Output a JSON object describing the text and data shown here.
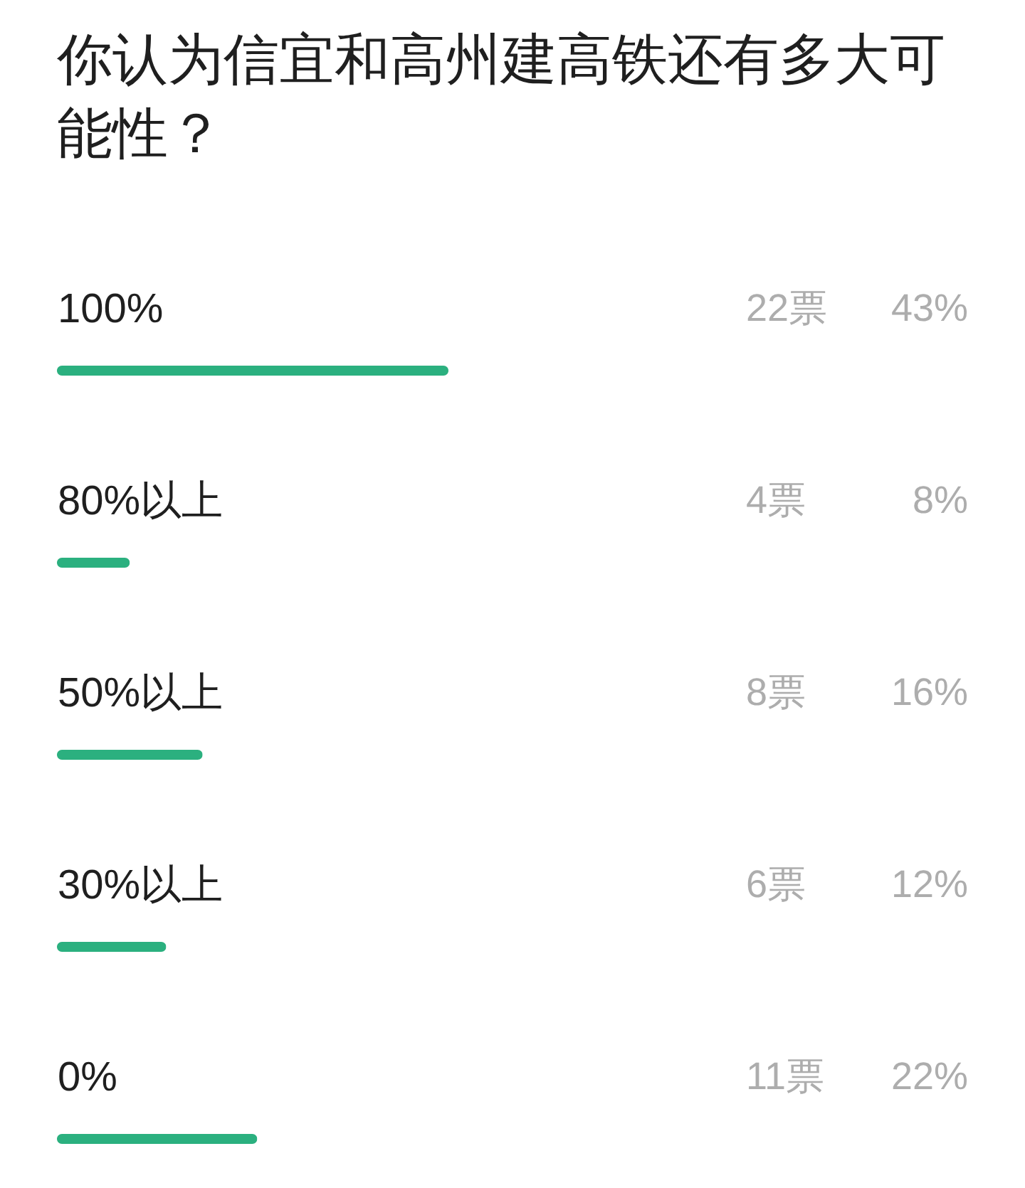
{
  "chart_data": {
    "type": "bar",
    "orientation": "horizontal",
    "title": "你认为信宜和高州建高铁还有多大可能性？",
    "categories": [
      "100%",
      "80%以上",
      "50%以上",
      "30%以上",
      "0%"
    ],
    "values": [
      43,
      8,
      16,
      12,
      22
    ],
    "value_labels": [
      "43%",
      "8%",
      "16%",
      "12%",
      "22%"
    ],
    "annotations": [
      "22票",
      "4票",
      "8票",
      "6票",
      "11票"
    ],
    "color": "#2bb07f",
    "tick_labels": "y"
  }
}
